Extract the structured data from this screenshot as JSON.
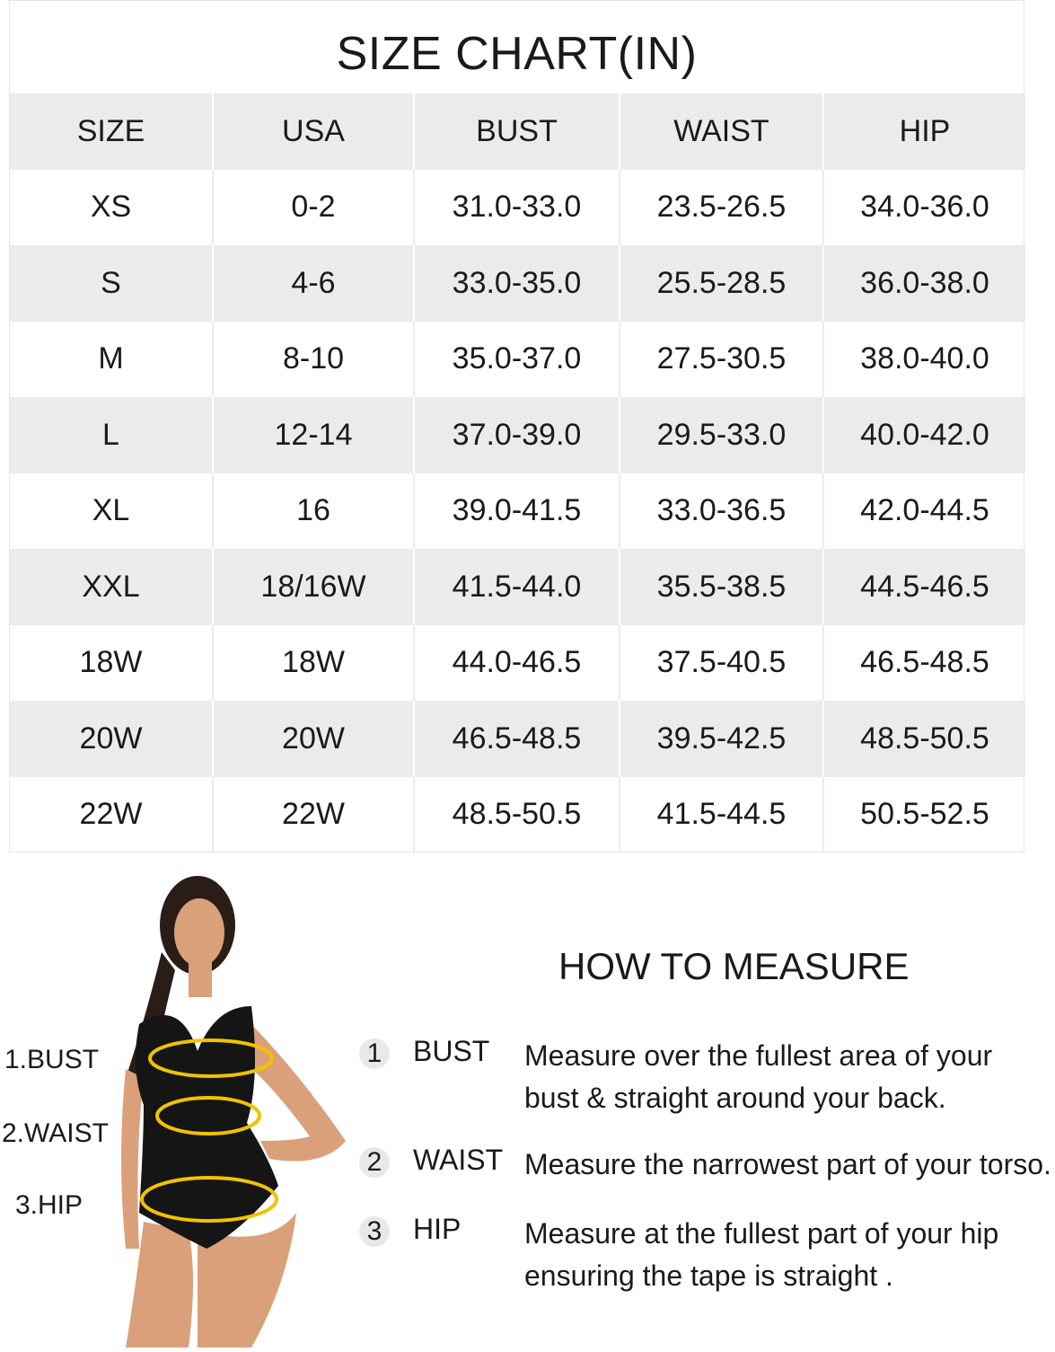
{
  "title": "SIZE CHART(IN)",
  "table": {
    "headers": [
      "SIZE",
      "USA",
      "BUST",
      "WAIST",
      "HIP"
    ],
    "rows": [
      [
        "XS",
        "0-2",
        "31.0-33.0",
        "23.5-26.5",
        "34.0-36.0"
      ],
      [
        "S",
        "4-6",
        "33.0-35.0",
        "25.5-28.5",
        "36.0-38.0"
      ],
      [
        "M",
        "8-10",
        "35.0-37.0",
        "27.5-30.5",
        "38.0-40.0"
      ],
      [
        "L",
        "12-14",
        "37.0-39.0",
        "29.5-33.0",
        "40.0-42.0"
      ],
      [
        "XL",
        "16",
        "39.0-41.5",
        "33.0-36.5",
        "42.0-44.5"
      ],
      [
        "XXL",
        "18/16W",
        "41.5-44.0",
        "35.5-38.5",
        "44.5-46.5"
      ],
      [
        "18W",
        "18W",
        "44.0-46.5",
        "37.5-40.5",
        "46.5-48.5"
      ],
      [
        "20W",
        "20W",
        "46.5-48.5",
        "39.5-42.5",
        "48.5-50.5"
      ],
      [
        "22W",
        "22W",
        "48.5-50.5",
        "41.5-44.5",
        "50.5-52.5"
      ]
    ]
  },
  "figure_labels": [
    "1.BUST",
    "2.WAIST",
    "3.HIP"
  ],
  "how_to": {
    "title": "HOW TO MEASURE",
    "steps": [
      {
        "num": "1",
        "name": "BUST",
        "desc": "Measure over the fullest area of your bust & straight around your back."
      },
      {
        "num": "2",
        "name": "WAIST",
        "desc": "Measure the narrowest part of your torso."
      },
      {
        "num": "3",
        "name": "HIP",
        "desc": "Measure at the fullest part of your hip ensuring the tape is straight ."
      }
    ]
  },
  "colors": {
    "row_shade": "#ebebeb",
    "tape": "#f2c200",
    "swimsuit": "#151515",
    "skin": "#d9a07a"
  }
}
